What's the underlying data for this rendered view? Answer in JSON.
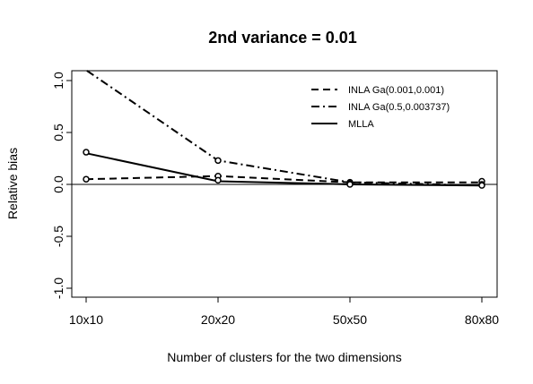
{
  "chart_data": {
    "type": "line",
    "title": "2nd variance = 0.01",
    "xlabel": "Number of clusters for the two dimensions",
    "ylabel": "Relative bias",
    "categories": [
      "10x10",
      "20x20",
      "50x50",
      "80x80"
    ],
    "y_ticks": [
      "-1.0",
      "-0.5",
      "0.0",
      "0.5",
      "1.0"
    ],
    "y_tick_values": [
      -1.0,
      -0.5,
      0.0,
      0.5,
      1.0
    ],
    "ylim": [
      -1.1,
      1.1
    ],
    "reference_line": 0.0,
    "legend_position": "top-right",
    "series": [
      {
        "name": "INLA Ga(0.001,0.001)",
        "line_style": "dashed",
        "values": [
          0.05,
          0.08,
          0.02,
          0.02
        ]
      },
      {
        "name": "INLA Ga(0.5,0.003737)",
        "line_style": "dotdash",
        "values": [
          1.1,
          0.23,
          0.02,
          -0.01
        ]
      },
      {
        "name": "MLLA",
        "line_style": "solid",
        "values": [
          0.3,
          0.03,
          0.0,
          -0.01
        ]
      }
    ],
    "point_values": [
      0.31,
      0.05,
      0.23,
      0.08,
      0.04,
      0.02,
      0.01,
      0.0,
      0.03,
      0.0,
      -0.01
    ],
    "point_category_index": [
      0,
      0,
      1,
      1,
      1,
      2,
      2,
      2,
      3,
      3,
      3
    ]
  }
}
